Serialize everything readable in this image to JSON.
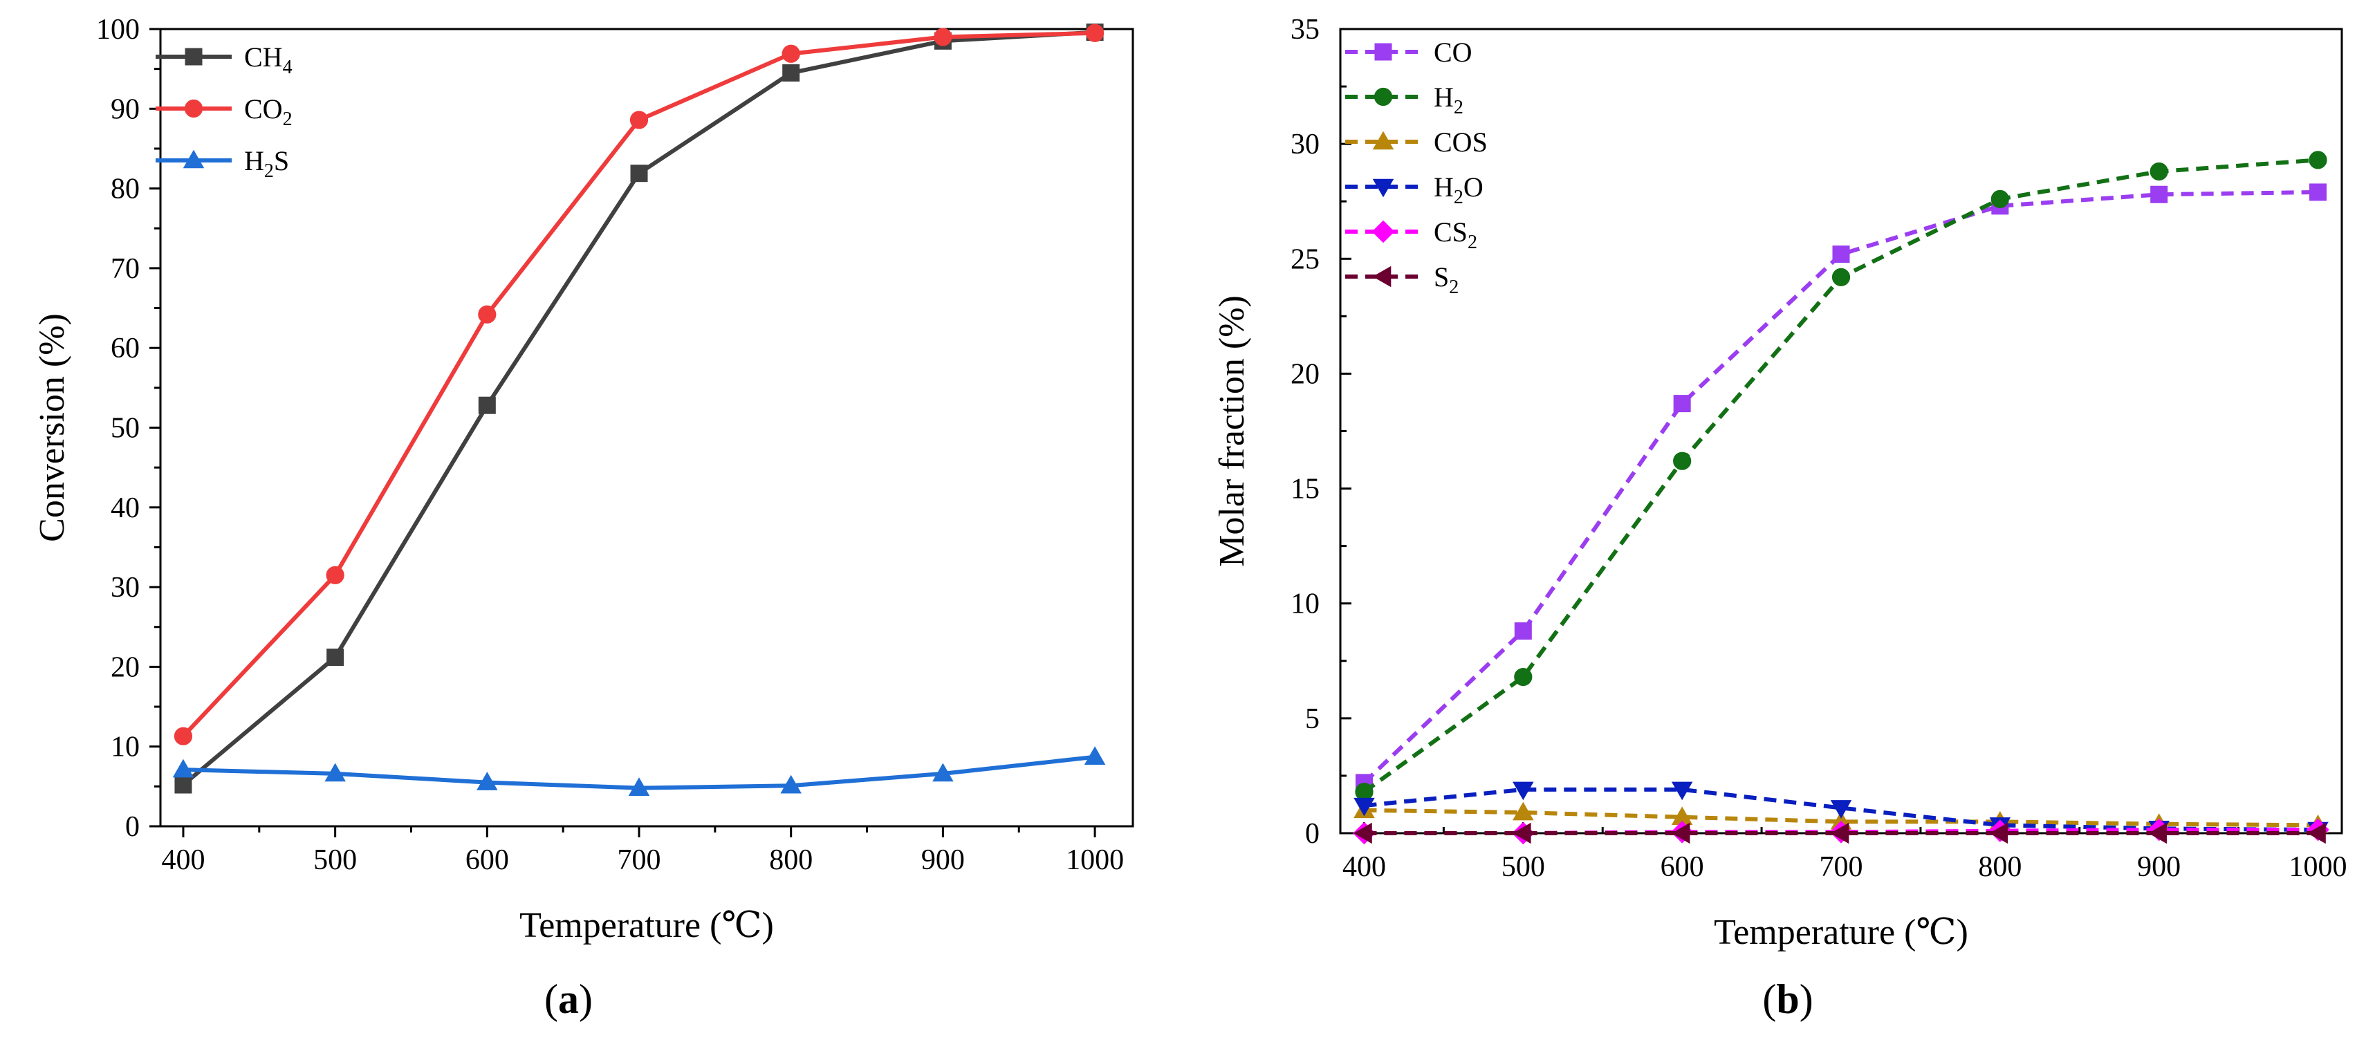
{
  "chart_data": [
    {
      "panel_label": "(a)",
      "type": "line",
      "xlabel": "Temperature (℃)",
      "ylabel": "Conversion (%)",
      "xlim": [
        385,
        1025
      ],
      "ylim": [
        0,
        100
      ],
      "xticks": [
        400,
        500,
        600,
        700,
        800,
        900,
        1000
      ],
      "yticks": [
        0,
        10,
        20,
        30,
        40,
        50,
        60,
        70,
        80,
        90,
        100
      ],
      "grid": false,
      "legend_position": "top-left",
      "x": [
        400,
        500,
        600,
        700,
        800,
        900,
        1000
      ],
      "series": [
        {
          "name": "CH",
          "sub": "4",
          "tail": "",
          "color": "#404040",
          "marker": "square",
          "dashed": false,
          "values": [
            5.2,
            21.2,
            52.8,
            81.9,
            94.5,
            98.5,
            99.6
          ]
        },
        {
          "name": "CO",
          "sub": "2",
          "tail": "",
          "color": "#ef3b3b",
          "marker": "circle",
          "dashed": false,
          "values": [
            11.3,
            31.5,
            64.2,
            88.6,
            96.9,
            99.0,
            99.5
          ]
        },
        {
          "name": "H",
          "sub": "2",
          "tail": "S",
          "color": "#1f6fd6",
          "marker": "triangle-up",
          "dashed": false,
          "values": [
            7.1,
            6.6,
            5.5,
            4.8,
            5.1,
            6.6,
            8.7
          ]
        }
      ]
    },
    {
      "panel_label": "(b)",
      "type": "line",
      "xlabel": "Temperature (℃)",
      "ylabel": "Molar fraction (%)",
      "xlim": [
        385,
        1015
      ],
      "ylim": [
        0,
        35
      ],
      "xticks": [
        400,
        500,
        600,
        700,
        800,
        900,
        1000
      ],
      "yticks": [
        0,
        5,
        10,
        15,
        20,
        25,
        30,
        35
      ],
      "grid": false,
      "legend_position": "top-left",
      "x": [
        400,
        500,
        600,
        700,
        800,
        900,
        1000
      ],
      "series": [
        {
          "name": "CO",
          "sub": "",
          "tail": "",
          "color": "#9b3df0",
          "marker": "square",
          "dashed": true,
          "values": [
            2.2,
            8.8,
            18.7,
            25.2,
            27.3,
            27.8,
            27.9
          ]
        },
        {
          "name": "H",
          "sub": "2",
          "tail": "",
          "color": "#127015",
          "marker": "circle",
          "dashed": true,
          "values": [
            1.8,
            6.8,
            16.2,
            24.2,
            27.6,
            28.8,
            29.3
          ]
        },
        {
          "name": "COS",
          "sub": "",
          "tail": "",
          "color": "#b8860b",
          "marker": "triangle-up",
          "dashed": true,
          "values": [
            1.0,
            0.9,
            0.7,
            0.5,
            0.5,
            0.4,
            0.35
          ]
        },
        {
          "name": "H",
          "sub": "2",
          "tail": "O",
          "color": "#0a1fbf",
          "marker": "triangle-down",
          "dashed": true,
          "values": [
            1.2,
            1.9,
            1.9,
            1.1,
            0.35,
            0.2,
            0.15
          ]
        },
        {
          "name": "CS",
          "sub": "2",
          "tail": "",
          "color": "#ff00ff",
          "marker": "diamond",
          "dashed": true,
          "values": [
            0.0,
            0.0,
            0.05,
            0.05,
            0.1,
            0.15,
            0.15
          ]
        },
        {
          "name": "S",
          "sub": "2",
          "tail": "",
          "color": "#6b0030",
          "marker": "triangle-left",
          "dashed": true,
          "values": [
            0.0,
            0.0,
            0.0,
            0.0,
            0.0,
            0.0,
            0.0
          ]
        }
      ]
    }
  ]
}
